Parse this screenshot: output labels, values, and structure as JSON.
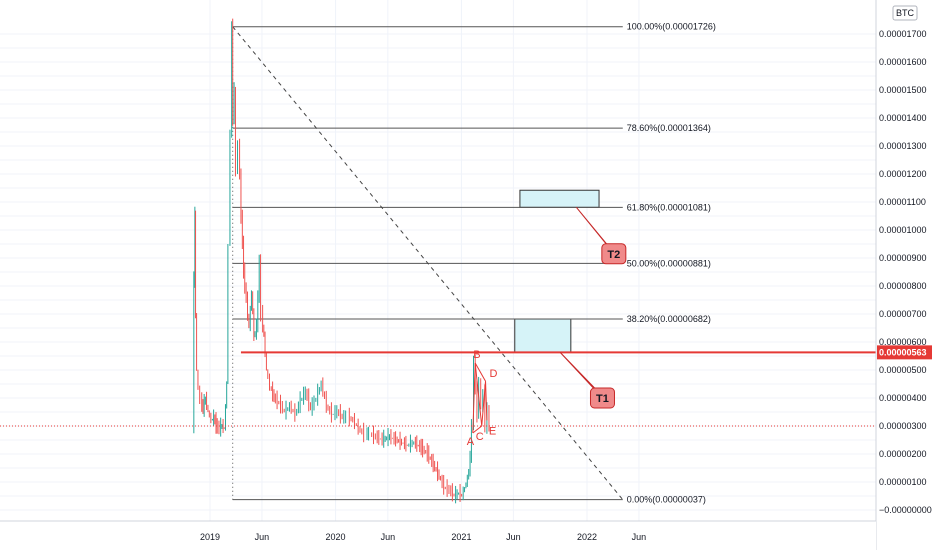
{
  "chart_data": {
    "type": "line",
    "symbol_currency": "BTC",
    "y_axis": {
      "min": -1e-07,
      "max": 1.85e-05,
      "ticks": [
        {
          "value": 1.7e-05,
          "label": "0.00001700"
        },
        {
          "value": 1.6e-05,
          "label": "0.00001600"
        },
        {
          "value": 1.5e-05,
          "label": "0.00001500"
        },
        {
          "value": 1.4e-05,
          "label": "0.00001400"
        },
        {
          "value": 1.3e-05,
          "label": "0.00001300"
        },
        {
          "value": 1.2e-05,
          "label": "0.00001200"
        },
        {
          "value": 1.1e-05,
          "label": "0.00001100"
        },
        {
          "value": 1e-05,
          "label": "0.00001000"
        },
        {
          "value": 9e-06,
          "label": "0.00000900"
        },
        {
          "value": 8e-06,
          "label": "0.00000800"
        },
        {
          "value": 7e-06,
          "label": "0.00000700"
        },
        {
          "value": 6e-06,
          "label": "0.00000600"
        },
        {
          "value": 5e-06,
          "label": "0.00000500"
        },
        {
          "value": 4e-06,
          "label": "0.00000400"
        },
        {
          "value": 3e-06,
          "label": "0.00000300"
        },
        {
          "value": 2e-06,
          "label": "0.00000200"
        },
        {
          "value": 1e-06,
          "label": "0.00000100"
        },
        {
          "value": 0.0,
          "label": "−0.00000000"
        }
      ]
    },
    "x_axis": {
      "min": "2018-09-15",
      "max": "2022-08-31",
      "ticks": [
        {
          "date": "2019-01-01",
          "label": "2019"
        },
        {
          "date": "2019-06-01",
          "label": "Jun"
        },
        {
          "date": "2020-01-01",
          "label": "2020"
        },
        {
          "date": "2020-06-01",
          "label": "Jun"
        },
        {
          "date": "2021-01-01",
          "label": "2021"
        },
        {
          "date": "2021-06-01",
          "label": "Jun"
        },
        {
          "date": "2022-01-01",
          "label": "2022"
        },
        {
          "date": "2022-06-01",
          "label": "Jun"
        }
      ]
    },
    "current_price": {
      "value": 5.63e-06,
      "label": "0.00000563"
    },
    "dotted_reference_price": 3e-06,
    "price_series": [
      [
        "2018-11-15",
        3e-06
      ],
      [
        "2018-11-18",
        8.2e-06
      ],
      [
        "2018-11-20",
        1.05e-05
      ],
      [
        "2018-11-23",
        7e-06
      ],
      [
        "2018-11-27",
        5e-06
      ],
      [
        "2018-12-02",
        4.3e-06
      ],
      [
        "2018-12-08",
        3.9e-06
      ],
      [
        "2018-12-15",
        3.6e-06
      ],
      [
        "2018-12-22",
        4e-06
      ],
      [
        "2018-12-30",
        3.5e-06
      ],
      [
        "2019-01-08",
        3.2e-06
      ],
      [
        "2019-01-15",
        3.3e-06
      ],
      [
        "2019-01-22",
        3e-06
      ],
      [
        "2019-02-01",
        2.9e-06
      ],
      [
        "2019-02-08",
        3e-06
      ],
      [
        "2019-02-15",
        2.9e-06
      ],
      [
        "2019-02-22",
        4.5e-06
      ],
      [
        "2019-02-28",
        9.5e-06
      ],
      [
        "2019-03-05",
        1.35e-05
      ],
      [
        "2019-03-08",
        1.72e-05
      ],
      [
        "2019-03-12",
        1.4e-05
      ],
      [
        "2019-03-16",
        1.5e-05
      ],
      [
        "2019-03-22",
        1.2e-05
      ],
      [
        "2019-03-28",
        1.32e-05
      ],
      [
        "2019-04-05",
        1.05e-05
      ],
      [
        "2019-04-12",
        8.5e-06
      ],
      [
        "2019-04-20",
        7.5e-06
      ],
      [
        "2019-04-28",
        6.5e-06
      ],
      [
        "2019-05-05",
        7.8e-06
      ],
      [
        "2019-05-12",
        6.2e-06
      ],
      [
        "2019-05-20",
        6.5e-06
      ],
      [
        "2019-05-28",
        8.8e-06
      ],
      [
        "2019-06-03",
        7e-06
      ],
      [
        "2019-06-10",
        6.2e-06
      ],
      [
        "2019-06-18",
        5e-06
      ],
      [
        "2019-06-28",
        4.4e-06
      ],
      [
        "2019-07-10",
        4e-06
      ],
      [
        "2019-07-25",
        3.8e-06
      ],
      [
        "2019-08-10",
        3.5e-06
      ],
      [
        "2019-08-25",
        3.7e-06
      ],
      [
        "2019-09-10",
        3.4e-06
      ],
      [
        "2019-09-25",
        3.9e-06
      ],
      [
        "2019-10-10",
        4.2e-06
      ],
      [
        "2019-10-25",
        3.6e-06
      ],
      [
        "2019-11-10",
        4e-06
      ],
      [
        "2019-11-25",
        4.5e-06
      ],
      [
        "2019-12-10",
        3.7e-06
      ],
      [
        "2019-12-25",
        3.4e-06
      ],
      [
        "2020-01-10",
        3.5e-06
      ],
      [
        "2020-01-25",
        3.3e-06
      ],
      [
        "2020-02-10",
        3.3e-06
      ],
      [
        "2020-02-25",
        3.2e-06
      ],
      [
        "2020-03-12",
        2.9e-06
      ],
      [
        "2020-03-28",
        2.7e-06
      ],
      [
        "2020-04-15",
        2.7e-06
      ],
      [
        "2020-05-01",
        2.6e-06
      ],
      [
        "2020-05-20",
        2.5e-06
      ],
      [
        "2020-06-10",
        2.6e-06
      ],
      [
        "2020-06-28",
        2.5e-06
      ],
      [
        "2020-07-15",
        2.4e-06
      ],
      [
        "2020-08-01",
        2.3e-06
      ],
      [
        "2020-08-20",
        2.4e-06
      ],
      [
        "2020-09-10",
        2.2e-06
      ],
      [
        "2020-09-28",
        2e-06
      ],
      [
        "2020-10-15",
        1.6e-06
      ],
      [
        "2020-11-01",
        1.2e-06
      ],
      [
        "2020-11-15",
        8e-07
      ],
      [
        "2020-12-01",
        7e-07
      ],
      [
        "2020-12-15",
        5e-07
      ],
      [
        "2020-12-28",
        6e-07
      ],
      [
        "2021-01-06",
        5e-07
      ],
      [
        "2021-01-14",
        8e-07
      ],
      [
        "2021-01-22",
        1.1e-06
      ],
      [
        "2021-01-30",
        1.8e-06
      ],
      [
        "2021-02-05",
        3.1e-06
      ],
      [
        "2021-02-10",
        5.2e-06
      ],
      [
        "2021-02-15",
        4.4e-06
      ],
      [
        "2021-02-20",
        3.3e-06
      ],
      [
        "2021-02-26",
        4.7e-06
      ],
      [
        "2021-03-04",
        3.6e-06
      ],
      [
        "2021-03-10",
        4.2e-06
      ],
      [
        "2021-03-16",
        3e-06
      ],
      [
        "2021-03-22",
        3.5e-06
      ],
      [
        "2021-03-28",
        3e-06
      ]
    ],
    "fibonacci_levels": [
      {
        "ratio": "100.00%",
        "price": 1.726e-05,
        "label": "100.00%(0.00001726)"
      },
      {
        "ratio": "78.60%",
        "price": 1.364e-05,
        "label": "78.60%(0.00001364)"
      },
      {
        "ratio": "61.80%",
        "price": 1.081e-05,
        "label": "61.80%(0.00001081)"
      },
      {
        "ratio": "50.00%",
        "price": 8.81e-06,
        "label": "50.00%(0.00000881)"
      },
      {
        "ratio": "38.20%",
        "price": 6.82e-06,
        "label": "38.20%(0.00000682)"
      },
      {
        "ratio": "0.00%",
        "price": 3.7e-07,
        "label": "0.00%(0.00000037)"
      }
    ],
    "fibonacci_range": {
      "start": "2019-03-08",
      "end": "2022-04-15"
    },
    "trendline": {
      "start": [
        "2019-03-08",
        1.726e-05
      ],
      "end": [
        "2022-04-15",
        3.7e-07
      ]
    },
    "target_zones": [
      {
        "name": "T1",
        "date_start": "2021-06-05",
        "date_end": "2021-11-15",
        "price_low": 5.63e-06,
        "price_high": 6.82e-06
      },
      {
        "name": "T2",
        "date_start": "2021-06-20",
        "date_end": "2022-02-05",
        "price_low": 1.081e-05,
        "price_high": 1.142e-05
      }
    ],
    "callouts": [
      {
        "label": "T1",
        "tail": [
          "2021-10-15",
          5.63e-06
        ],
        "box": [
          "2022-02-15",
          4e-06
        ]
      },
      {
        "label": "T2",
        "tail": [
          "2021-12-01",
          1.081e-05
        ],
        "box": [
          "2022-03-20",
          9.15e-06
        ]
      }
    ],
    "triangle_pattern": {
      "color": "#e53935",
      "points": [
        {
          "label": "A",
          "date": "2021-02-03",
          "price": 2.75e-06
        },
        {
          "label": "B",
          "date": "2021-02-10",
          "price": 5.25e-06
        },
        {
          "label": "C",
          "date": "2021-03-01",
          "price": 3e-06
        },
        {
          "label": "D",
          "date": "2021-03-12",
          "price": 4.6e-06
        },
        {
          "label": "E",
          "date": "2021-03-16",
          "price": 3.2e-06
        }
      ]
    },
    "colors": {
      "up": "#26a69a",
      "down": "#ef5350",
      "fib_line": "#555555",
      "zone_fill": "#d6f3f8",
      "zone_border": "#333333",
      "support_line": "#e53935",
      "callout_fill": "#f08a8a",
      "callout_border": "#c62828",
      "grid": "#f0f3fa"
    }
  }
}
